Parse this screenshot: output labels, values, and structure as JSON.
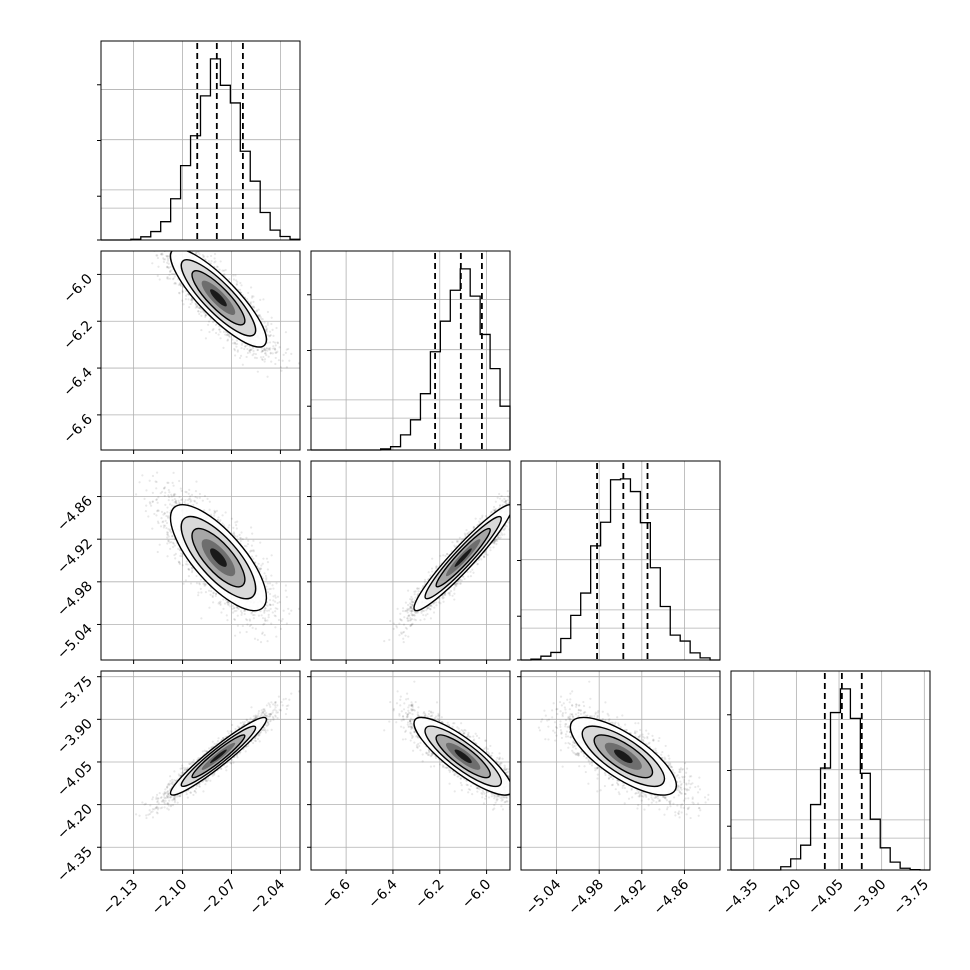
{
  "chart_data": {
    "type": "corner",
    "grid": true,
    "parameters": [
      {
        "range": [
          -2.15,
          -2.028
        ],
        "ticks": [
          -2.13,
          -2.1,
          -2.07,
          -2.04
        ],
        "tick_labels": [
          "−2.13",
          "−2.10",
          "−2.07",
          "−2.04"
        ],
        "quantiles": [
          -2.091,
          -2.079,
          -2.063
        ],
        "mean": -2.078,
        "hist_peak": -2.079
      },
      {
        "range": [
          -6.75,
          -5.9
        ],
        "ticks": [
          -6.6,
          -6.4,
          -6.2,
          -6.0
        ],
        "tick_labels": [
          "−6.6",
          "−6.4",
          "−6.2",
          "−6.0"
        ],
        "quantiles": [
          -6.22,
          -6.11,
          -6.02
        ],
        "mean": -6.1,
        "hist_peak": -6.06
      },
      {
        "range": [
          -5.09,
          -4.81
        ],
        "ticks": [
          -5.04,
          -4.98,
          -4.92,
          -4.86
        ],
        "tick_labels": [
          "−5.04",
          "−4.98",
          "−4.92",
          "−4.86"
        ],
        "quantiles": [
          -4.983,
          -4.946,
          -4.912
        ],
        "mean": -4.946,
        "hist_peak": -4.945
      },
      {
        "range": [
          -4.43,
          -3.73
        ],
        "ticks": [
          -4.35,
          -4.2,
          -4.05,
          -3.9,
          -3.75
        ],
        "tick_labels": [
          "−4.35",
          "−4.20",
          "−4.05",
          "−3.90",
          "−3.75"
        ],
        "quantiles": [
          -4.1,
          -4.04,
          -3.97
        ],
        "mean": -4.03,
        "hist_peak": -4.04
      }
    ],
    "correlations": {
      "1-0": -0.85,
      "2-0": -0.75,
      "2-1": 0.95,
      "3-0": 0.95,
      "3-1": -0.85,
      "3-2": -0.75
    }
  }
}
